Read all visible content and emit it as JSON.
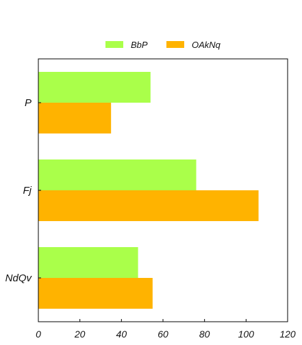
{
  "chart_data": {
    "type": "bar",
    "orientation": "horizontal",
    "categories": [
      "P",
      "Fj",
      "NdQv"
    ],
    "series": [
      {
        "name": "BbP",
        "values": [
          54,
          76,
          48
        ],
        "color": "#aaff4a"
      },
      {
        "name": "OAkNq",
        "values": [
          35,
          106,
          55
        ],
        "color": "#ffb300"
      }
    ],
    "xlim": [
      0,
      120
    ],
    "xticks": [
      "0",
      "20",
      "40",
      "60",
      "80",
      "100",
      "120"
    ],
    "grid": false,
    "legend_position": "top-center",
    "title": "",
    "xlabel": "",
    "ylabel": ""
  }
}
